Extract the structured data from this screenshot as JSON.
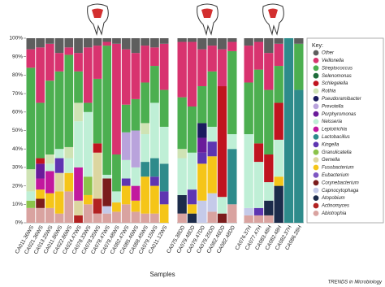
{
  "chart_data": {
    "type": "stacked_bar",
    "x_label": "Samples",
    "legend_title": "Key:",
    "footer": "TRENDS in Microbiology",
    "ylim": [
      0,
      100
    ],
    "yticks": [
      {
        "value": 0,
        "label": "0%"
      },
      {
        "value": 10,
        "label": "10%"
      },
      {
        "value": 20,
        "label": "20%"
      },
      {
        "value": 30,
        "label": "30%"
      },
      {
        "value": 40,
        "label": "40%"
      },
      {
        "value": 50,
        "label": "50%"
      },
      {
        "value": 60,
        "label": "60%"
      },
      {
        "value": 70,
        "label": "70%"
      },
      {
        "value": 80,
        "label": "80%"
      },
      {
        "value": 90,
        "label": "90%"
      },
      {
        "value": 100,
        "label": "100%"
      }
    ],
    "panels": [
      {
        "categories": [
          "CA011.36WS",
          "CA021.36WS",
          "CA013.25WS",
          "CA011.86WS",
          "CA022.86WS",
          "CA024.47WS",
          "CA078.33WS",
          "CA078.35WS",
          "CA078.47WS",
          "CA078.48WS",
          "CA082.47WS",
          "CA085.46WS",
          "CA088.45WS",
          "CA079.15WS",
          "CA011.12WS"
        ]
      },
      {
        "categories": [
          "CA075.38DD",
          "CA079.48DD",
          "CA079.47DD",
          "CA079.25DD",
          "CA082.46DD",
          "CA082.48DD"
        ]
      },
      {
        "categories": [
          "CA076.37H",
          "CA077.47H",
          "CA083.48H",
          "CA082.48H",
          "CA082.37H",
          "CA086.28H"
        ]
      }
    ],
    "series": [
      {
        "name": "Other",
        "color": "#5e5e5e",
        "values": [
          6,
          5,
          3,
          8,
          5,
          8,
          5,
          4,
          2,
          3,
          6,
          8,
          4,
          5,
          3,
          2,
          2,
          6,
          4,
          6,
          2,
          4,
          2,
          8,
          3,
          0,
          3
        ]
      },
      {
        "name": "Veillonella",
        "color": "#d8336f",
        "values": [
          10,
          30,
          20,
          10,
          4,
          10,
          30,
          18,
          2,
          60,
          30,
          25,
          20,
          10,
          25,
          30,
          35,
          20,
          14,
          20,
          5,
          20,
          15,
          20,
          12,
          0,
          0
        ]
      },
      {
        "name": "Streptococcus",
        "color": "#4caf50",
        "values": [
          55,
          30,
          40,
          42,
          50,
          17,
          5,
          35,
          70,
          20,
          15,
          17,
          22,
          20,
          20,
          28,
          25,
          20,
          30,
          0,
          45,
          28,
          40,
          35,
          20,
          0,
          25
        ]
      },
      {
        "name": "Selenomonas",
        "color": "#1e6b3a",
        "values": [
          0,
          0,
          0,
          0,
          0,
          0,
          0,
          0,
          0,
          0,
          0,
          0,
          0,
          0,
          0,
          0,
          0,
          0,
          0,
          0,
          0,
          0,
          0,
          0,
          0,
          0,
          0
        ]
      },
      {
        "name": "Schlegelella",
        "color": "#c0141f",
        "values": [
          0,
          3,
          0,
          0,
          0,
          0,
          0,
          5,
          0,
          0,
          0,
          0,
          0,
          0,
          0,
          0,
          0,
          0,
          0,
          60,
          0,
          0,
          10,
          15,
          20,
          0,
          0
        ]
      },
      {
        "name": "Rothia",
        "color": "#cfe3b4",
        "values": [
          12,
          0,
          5,
          0,
          6,
          10,
          0,
          0,
          0,
          0,
          0,
          0,
          6,
          0,
          0,
          5,
          0,
          0,
          0,
          0,
          0,
          0,
          0,
          0,
          0,
          0,
          0
        ]
      },
      {
        "name": "Pseudoramibacter",
        "color": "#1b1b5e",
        "values": [
          0,
          0,
          0,
          0,
          0,
          0,
          0,
          0,
          0,
          0,
          0,
          0,
          0,
          0,
          0,
          0,
          0,
          8,
          0,
          0,
          0,
          0,
          0,
          0,
          0,
          0,
          0
        ]
      },
      {
        "name": "Prevotella",
        "color": "#b9a3dc",
        "values": [
          0,
          0,
          0,
          0,
          0,
          0,
          0,
          0,
          0,
          0,
          15,
          20,
          0,
          0,
          0,
          0,
          0,
          0,
          0,
          0,
          0,
          0,
          0,
          0,
          0,
          0,
          0
        ]
      },
      {
        "name": "Porphyromonas",
        "color": "#6a1b9a",
        "values": [
          0,
          8,
          0,
          0,
          0,
          0,
          0,
          0,
          0,
          0,
          0,
          0,
          0,
          0,
          0,
          0,
          0,
          8,
          0,
          0,
          0,
          0,
          0,
          0,
          0,
          0,
          0
        ]
      },
      {
        "name": "Neisseria",
        "color": "#bfefd6",
        "values": [
          5,
          0,
          4,
          5,
          8,
          25,
          35,
          0,
          2,
          6,
          10,
          10,
          15,
          30,
          20,
          20,
          20,
          0,
          8,
          9,
          8,
          40,
          25,
          10,
          20,
          0,
          0
        ]
      },
      {
        "name": "Leptotrichia",
        "color": "#c2189e",
        "values": [
          0,
          6,
          12,
          0,
          0,
          18,
          0,
          0,
          0,
          0,
          0,
          8,
          0,
          0,
          0,
          0,
          0,
          0,
          0,
          0,
          0,
          0,
          0,
          0,
          0,
          0,
          0
        ]
      },
      {
        "name": "Lactobacillus",
        "color": "#2e8b8b",
        "values": [
          0,
          0,
          0,
          0,
          0,
          0,
          0,
          0,
          0,
          0,
          0,
          0,
          8,
          10,
          15,
          0,
          0,
          0,
          0,
          0,
          30,
          0,
          0,
          0,
          0,
          100,
          72
        ]
      },
      {
        "name": "Kingella",
        "color": "#5e35b1",
        "values": [
          0,
          0,
          0,
          8,
          0,
          0,
          0,
          0,
          0,
          0,
          4,
          0,
          0,
          5,
          7,
          0,
          8,
          6,
          8,
          0,
          0,
          0,
          4,
          0,
          0,
          0,
          0
        ]
      },
      {
        "name": "Granulicatella",
        "color": "#8bc34a",
        "values": [
          4,
          0,
          0,
          0,
          0,
          0,
          10,
          0,
          0,
          0,
          0,
          0,
          0,
          0,
          0,
          0,
          0,
          0,
          0,
          0,
          0,
          0,
          0,
          0,
          0,
          0,
          0
        ]
      },
      {
        "name": "Gemella",
        "color": "#dcd6a0",
        "values": [
          0,
          0,
          0,
          10,
          0,
          8,
          0,
          25,
          0,
          0,
          0,
          0,
          0,
          0,
          0,
          0,
          0,
          0,
          0,
          0,
          0,
          0,
          0,
          0,
          0,
          0,
          0
        ]
      },
      {
        "name": "Fusobacterium",
        "color": "#f5c518",
        "values": [
          0,
          5,
          8,
          12,
          10,
          0,
          5,
          0,
          0,
          5,
          10,
          6,
          20,
          15,
          10,
          0,
          5,
          20,
          20,
          0,
          0,
          0,
          0,
          0,
          5,
          0,
          0
        ]
      },
      {
        "name": "Eubacterium",
        "color": "#7e57c2",
        "values": [
          0,
          0,
          0,
          0,
          0,
          0,
          0,
          0,
          0,
          0,
          0,
          0,
          0,
          0,
          0,
          0,
          0,
          0,
          0,
          0,
          0,
          0,
          0,
          0,
          0,
          0,
          0
        ]
      },
      {
        "name": "Corynebacterium",
        "color": "#7b1c1c",
        "values": [
          0,
          5,
          0,
          0,
          0,
          0,
          0,
          0,
          15,
          0,
          0,
          0,
          0,
          0,
          0,
          0,
          0,
          0,
          0,
          5,
          0,
          0,
          0,
          0,
          0,
          0,
          0
        ]
      },
      {
        "name": "Capnocytophaga",
        "color": "#c5cae9",
        "values": [
          0,
          0,
          0,
          0,
          0,
          0,
          0,
          0,
          4,
          0,
          0,
          0,
          0,
          0,
          0,
          0,
          0,
          12,
          10,
          0,
          0,
          4,
          0,
          0,
          0,
          0,
          0
        ]
      },
      {
        "name": "Atopobium",
        "color": "#1c2b4a",
        "values": [
          0,
          0,
          0,
          0,
          0,
          0,
          0,
          0,
          0,
          0,
          0,
          0,
          0,
          0,
          0,
          10,
          5,
          0,
          0,
          0,
          0,
          0,
          0,
          8,
          20,
          0,
          0
        ]
      },
      {
        "name": "Actinomyces",
        "color": "#b22222",
        "values": [
          0,
          0,
          0,
          0,
          0,
          4,
          0,
          8,
          0,
          0,
          0,
          0,
          0,
          0,
          0,
          0,
          0,
          0,
          0,
          0,
          0,
          0,
          0,
          0,
          0,
          0,
          0
        ]
      },
      {
        "name": "Abiotrophia",
        "color": "#d9a3a0",
        "values": [
          8,
          8,
          8,
          5,
          17,
          0,
          10,
          5,
          5,
          6,
          10,
          6,
          5,
          5,
          0,
          5,
          0,
          0,
          6,
          0,
          10,
          4,
          4,
          4,
          0,
          0,
          0
        ]
      }
    ]
  }
}
